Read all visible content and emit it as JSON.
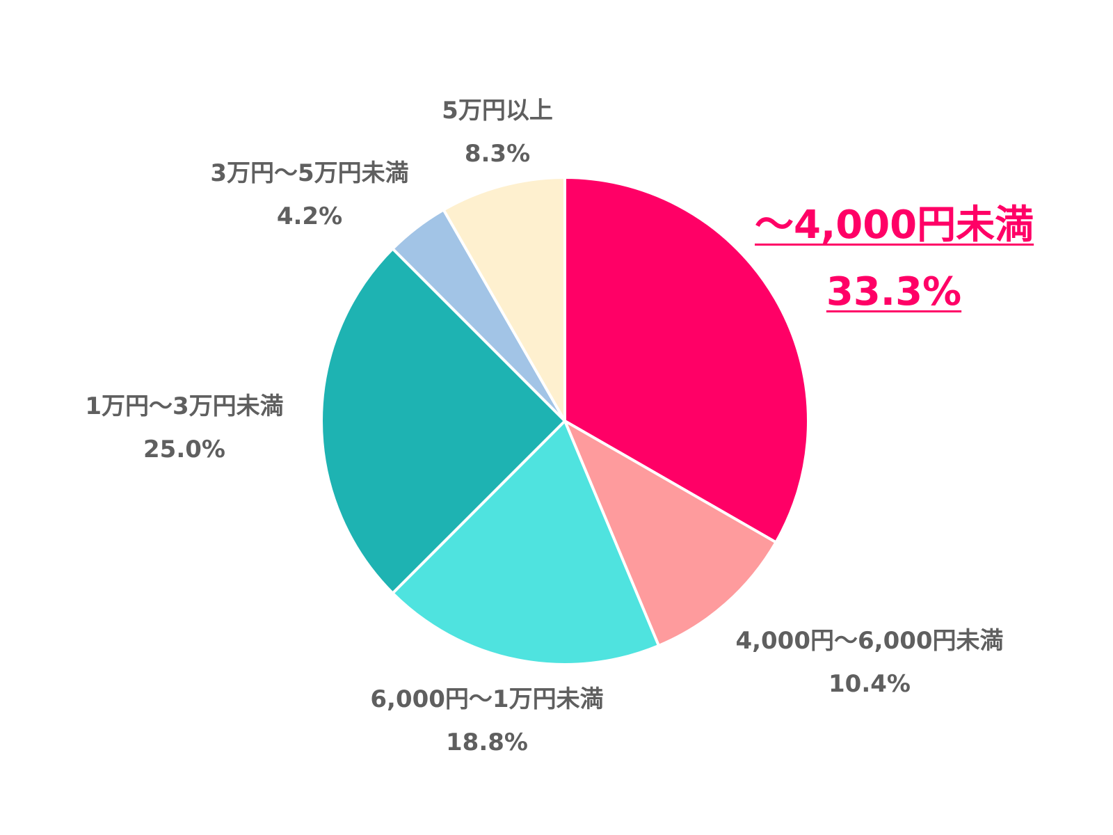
{
  "chart_data": {
    "type": "pie",
    "slices": [
      {
        "label": "～4,000円未満",
        "percent_text": "33.3%",
        "value": 33.3,
        "color": "#ff0066",
        "highlight": true
      },
      {
        "label": "4,000円～6,000円未満",
        "percent_text": "10.4%",
        "value": 10.4,
        "color": "#fe9b9d",
        "highlight": false
      },
      {
        "label": "6,000円～1万円未満",
        "percent_text": "18.8%",
        "value": 18.8,
        "color": "#4fe3df",
        "highlight": false
      },
      {
        "label": "1万円～3万円未満",
        "percent_text": "25.0%",
        "value": 25.0,
        "color": "#1eb3b2",
        "highlight": false
      },
      {
        "label": "3万円～5万円未満",
        "percent_text": "4.2%",
        "value": 4.2,
        "color": "#a2c4e6",
        "highlight": false
      },
      {
        "label": "5万円以上",
        "percent_text": "8.3%",
        "value": 8.3,
        "color": "#fef0cf",
        "highlight": false
      }
    ],
    "start": "12 o'clock",
    "direction": "clockwise",
    "legend": "none"
  }
}
